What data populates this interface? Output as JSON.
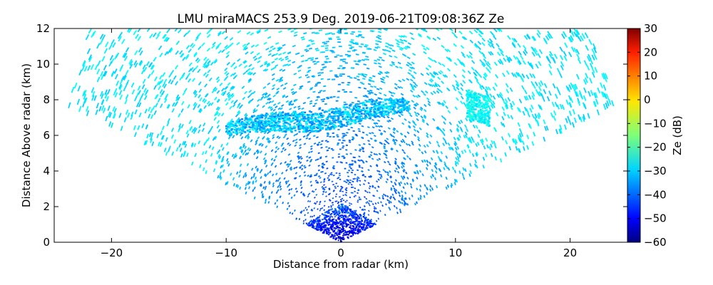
{
  "chart_data": {
    "type": "heatmap",
    "title": "LMU miraMACS 253.9 Deg. 2019-06-21T09:08:36Z  Ze",
    "xlabel": "Distance from radar (km)",
    "ylabel": "Distance Above radar  (km)",
    "xlim": [
      -25,
      25
    ],
    "ylim": [
      0,
      12
    ],
    "xticks": [
      "−20",
      "−10",
      "0",
      "10",
      "20"
    ],
    "yticks": [
      "0",
      "2",
      "4",
      "6",
      "8",
      "10",
      "12"
    ],
    "colorbar": {
      "label": "Ze (dB)",
      "range": [
        -60,
        30
      ],
      "ticks": [
        "−60",
        "−50",
        "−40",
        "−30",
        "−20",
        "−10",
        "0",
        "10",
        "20",
        "30"
      ],
      "colormap": "jet"
    },
    "scan_sector_deg": [
      18,
      162
    ],
    "max_range_km": 25,
    "features": [
      {
        "feature": "background noise",
        "ze_db": [
          -38,
          -28
        ]
      },
      {
        "feature": "near-radar returns",
        "x_km": [
          -5,
          5
        ],
        "y_km": [
          0,
          2.2
        ],
        "ze_db": [
          -55,
          -40
        ]
      },
      {
        "feature": "cloud layer",
        "x_km": [
          -10,
          6
        ],
        "y_km": [
          6.2,
          7.8
        ],
        "ze_db": [
          -38,
          -25
        ]
      },
      {
        "feature": "cloud patch",
        "x_km": [
          11,
          13
        ],
        "y_km": [
          7,
          8.6
        ],
        "ze_db": [
          -30,
          -22
        ]
      }
    ]
  }
}
